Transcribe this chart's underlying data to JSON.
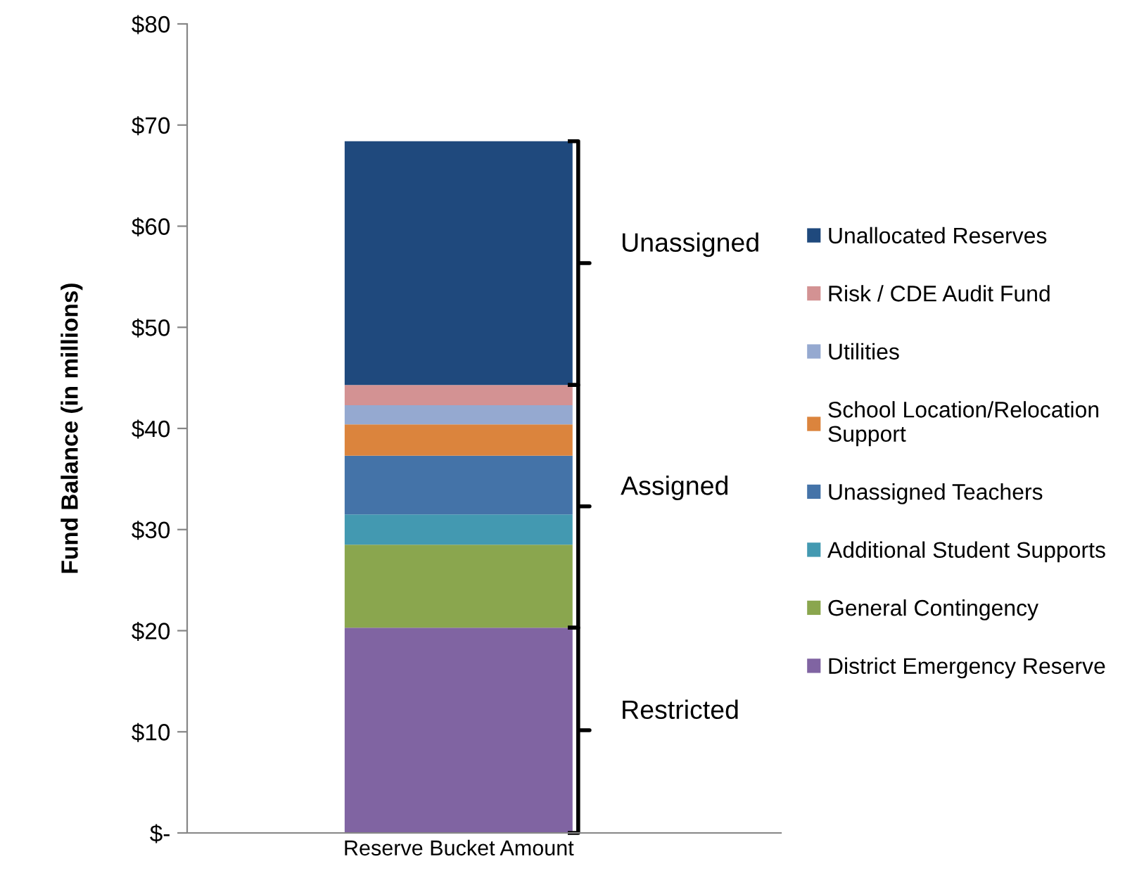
{
  "chart_data": {
    "type": "bar",
    "stacked": true,
    "categories": [
      "Reserve Bucket Amount"
    ],
    "series": [
      {
        "name": "District Emergency Reserve",
        "color": "#8064a2",
        "values": [
          20.3
        ]
      },
      {
        "name": "General Contingency",
        "color": "#8aa64e",
        "values": [
          8.2
        ]
      },
      {
        "name": "Additional Student Supports",
        "color": "#4399b1",
        "values": [
          3.0
        ]
      },
      {
        "name": "Unassigned Teachers",
        "color": "#4473a8",
        "values": [
          5.8
        ]
      },
      {
        "name": "School Location/Relocation Support",
        "color": "#db843d",
        "values": [
          3.1
        ]
      },
      {
        "name": "Utilities",
        "color": "#95a9d0",
        "values": [
          1.9
        ]
      },
      {
        "name": "Risk / CDE Audit Fund",
        "color": "#d39293",
        "values": [
          2.0
        ]
      },
      {
        "name": "Unallocated Reserves",
        "color": "#1f497d",
        "values": [
          24.1
        ]
      }
    ],
    "ylabel": "Fund Balance (in millions)",
    "ylim": [
      0,
      80
    ],
    "yticks": [
      {
        "value": 0,
        "label": "$-"
      },
      {
        "value": 10,
        "label": "$10"
      },
      {
        "value": 20,
        "label": "$20"
      },
      {
        "value": 30,
        "label": "$30"
      },
      {
        "value": 40,
        "label": "$40"
      },
      {
        "value": 50,
        "label": "$50"
      },
      {
        "value": 60,
        "label": "$60"
      },
      {
        "value": 70,
        "label": "$70"
      },
      {
        "value": 80,
        "label": "$80"
      }
    ],
    "annotations": [
      "Restricted",
      "Assigned",
      "Unassigned"
    ],
    "legend": "right",
    "grid": false
  }
}
